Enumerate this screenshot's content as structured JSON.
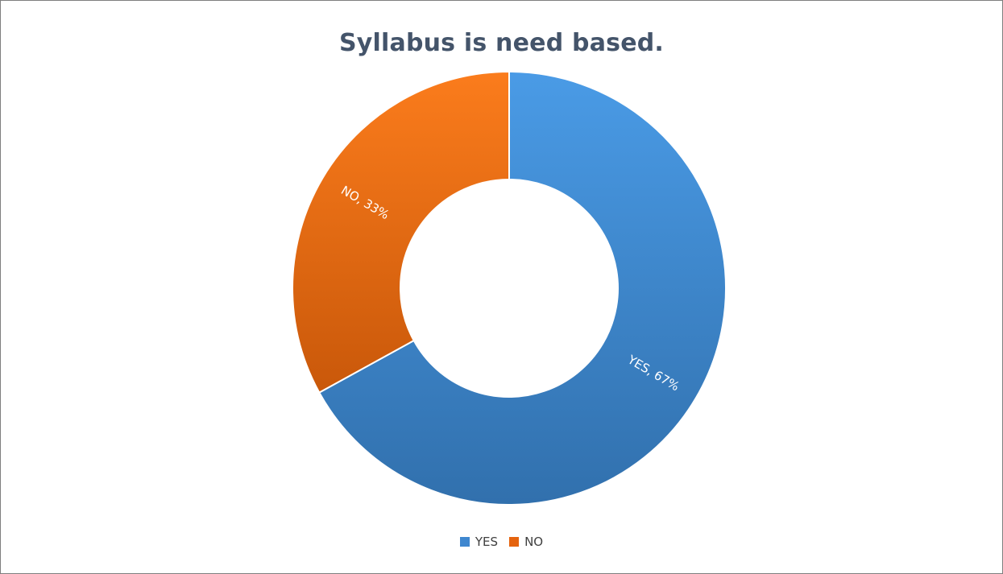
{
  "chart_data": {
    "type": "pie",
    "title": "Syllabus is need based.",
    "categories": [
      "YES",
      "NO"
    ],
    "values": [
      67,
      33
    ],
    "unit": "%",
    "data_labels": [
      "YES, 67%",
      "NO, 33%"
    ],
    "colors": [
      "#3f87cf",
      "#e5630e"
    ],
    "legend_position": "bottom",
    "style": "doughnut"
  }
}
